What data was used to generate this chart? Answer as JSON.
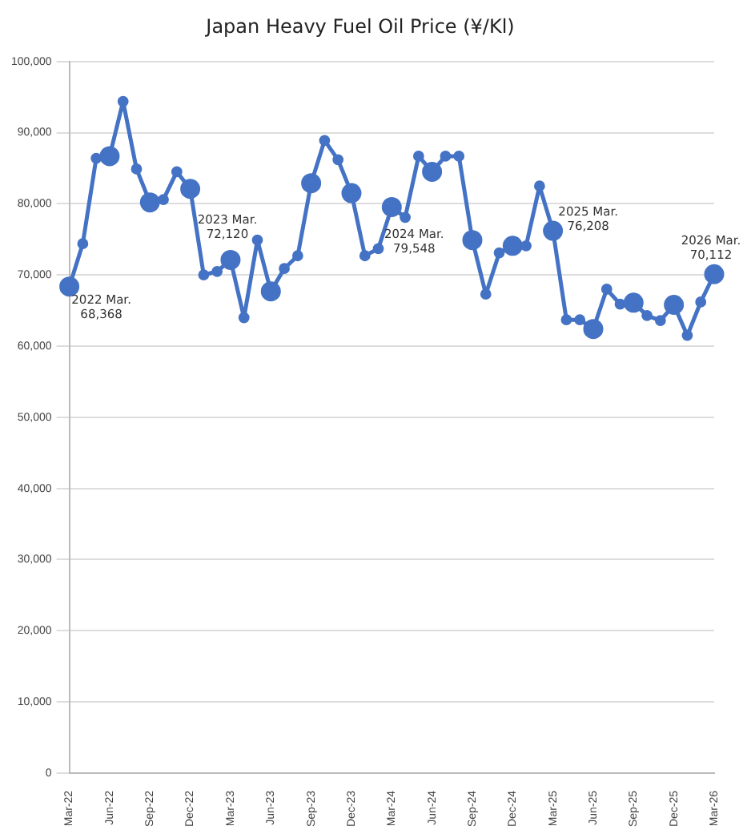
{
  "chart_data": {
    "type": "line",
    "title": "Japan Heavy Fuel Oil Price (¥/Kl)",
    "categories": [
      "Mar-22",
      null,
      null,
      "Jun-22",
      null,
      null,
      "Sep-22",
      null,
      null,
      "Dec-22",
      null,
      null,
      "Mar-23",
      null,
      null,
      "Jun-23",
      null,
      null,
      "Sep-23",
      null,
      null,
      "Dec-23",
      null,
      null,
      "Mar-24",
      null,
      null,
      "Jun-24",
      null,
      null,
      "Sep-24",
      null,
      null,
      "Dec-24",
      null,
      null,
      "Mar-25",
      null,
      null,
      "Jun-25",
      null,
      null,
      "Sep-25",
      null,
      null,
      "Dec-25",
      null,
      null,
      "Mar-26"
    ],
    "series": [
      {
        "color": "#4472c4",
        "values": [
          68368,
          74400,
          86400,
          86700,
          94400,
          84900,
          80200,
          80600,
          84500,
          82100,
          70000,
          70500,
          72120,
          64000,
          74900,
          67700,
          70900,
          72700,
          82900,
          88900,
          86200,
          81500,
          72700,
          73700,
          79548,
          78100,
          86700,
          84500,
          86700,
          86700,
          74900,
          67300,
          73100,
          74100,
          74100,
          82500,
          76208,
          63700,
          63700,
          62400,
          68000,
          65900,
          66100,
          64300,
          63600,
          65800,
          61500,
          66200,
          70112
        ]
      }
    ],
    "ylim": [
      0,
      100000
    ],
    "yticks": [
      {
        "value": 0,
        "label": "0"
      },
      {
        "value": 10000,
        "label": "10,000"
      },
      {
        "value": 20000,
        "label": "20,000"
      },
      {
        "value": 30000,
        "label": "30,000"
      },
      {
        "value": 40000,
        "label": "40,000"
      },
      {
        "value": 50000,
        "label": "50,000"
      },
      {
        "value": 60000,
        "label": "60,000"
      },
      {
        "value": 70000,
        "label": "70,000"
      },
      {
        "value": 80000,
        "label": "80,000"
      },
      {
        "value": 90000,
        "label": "90,000"
      },
      {
        "value": 100000,
        "label": "100,000"
      }
    ],
    "annotations": [
      {
        "text": "2022 Mar.\n68,368",
        "x": "Mar-22",
        "y": 68368
      },
      {
        "text": "2023 Mar.\n72,120",
        "x": "Mar-23",
        "y": 72120
      },
      {
        "text": "2024 Mar.\n79,548",
        "x": "Mar-24",
        "y": 79548
      },
      {
        "text": "2025 Mar.\n76,208",
        "x": "Mar-25",
        "y": 76208
      },
      {
        "text": "2026 Mar.\n70,112",
        "x": "Mar-26",
        "y": 70112
      }
    ],
    "grid": "y",
    "legend": false,
    "marker": "circle",
    "line_style": "solid"
  }
}
